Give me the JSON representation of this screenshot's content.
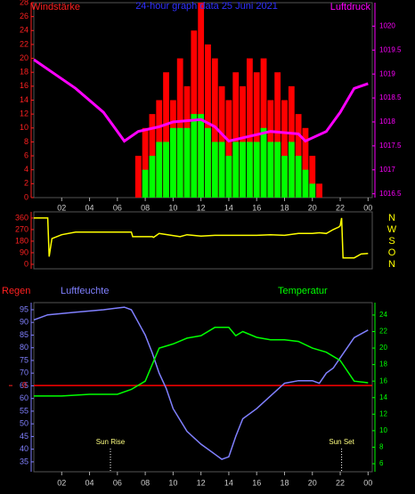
{
  "chart_data": [
    {
      "type": "bar",
      "title": "24-hour graph data  25 Juni 2021",
      "left_label": "Windstärke",
      "right_label": "Luftdruck",
      "left_color": "#ff2020",
      "right_color": "#ff00ff",
      "xlim": [
        0,
        24.3
      ],
      "xticks": [
        {
          "value": 2,
          "label": "02"
        },
        {
          "value": 4,
          "label": "04"
        },
        {
          "value": 6,
          "label": "06"
        },
        {
          "value": 8,
          "label": "08"
        },
        10,
        12,
        14,
        16,
        18,
        20,
        22,
        {
          "value": 24,
          "label": "00"
        }
      ],
      "ylim": [
        0,
        28
      ],
      "yticks": [
        0,
        2,
        4,
        6,
        8,
        10,
        12,
        14,
        16,
        18,
        20,
        22,
        24,
        26,
        28
      ],
      "y2lim": [
        1016.42,
        1020.49
      ],
      "y2ticks": [
        1016.5,
        1017,
        1017.5,
        1018,
        1018.5,
        1019,
        1019.5,
        1020
      ],
      "series": [
        {
          "type": "bar",
          "color": "#ff0000",
          "x": [
            7.5,
            8,
            8.5,
            9,
            9.5,
            10,
            10.5,
            11,
            11.5,
            12,
            12.5,
            13,
            13.5,
            14,
            14.5,
            15,
            15.5,
            16,
            16.5,
            17,
            17.5,
            18,
            18.5,
            19,
            19.5,
            20,
            20.5
          ],
          "values": [
            6,
            10,
            12,
            14,
            18,
            14,
            20,
            16,
            24,
            28,
            22,
            20,
            16,
            14,
            18,
            16,
            20,
            18,
            20,
            14,
            18,
            14,
            16,
            12,
            10,
            6,
            2
          ]
        },
        {
          "type": "bar",
          "color": "#00ff00",
          "x": [
            8,
            8.5,
            9,
            9.5,
            10,
            10.5,
            11,
            11.5,
            12,
            12.5,
            13,
            13.5,
            14,
            14.5,
            15,
            15.5,
            16,
            16.5,
            17,
            17.5,
            18,
            18.5,
            19,
            19.5,
            20
          ],
          "values": [
            4,
            6,
            8,
            8,
            10,
            10,
            10,
            12,
            12,
            10,
            8,
            8,
            6,
            8,
            8,
            8,
            8,
            10,
            8,
            8,
            6,
            8,
            6,
            4,
            2
          ]
        },
        {
          "type": "line",
          "axis": "y2",
          "color": "#ff00ff",
          "x": [
            0,
            0.5,
            1.5,
            3,
            5,
            6.5,
            7.5,
            9,
            10,
            12,
            13,
            14,
            15.5,
            17,
            19,
            19.5,
            21,
            22,
            23,
            24
          ],
          "values": [
            1019.3,
            1019.2,
            1019,
            1018.7,
            1018.2,
            1017.6,
            1017.8,
            1017.9,
            1018,
            1018.05,
            1017.9,
            1017.6,
            1017.7,
            1017.8,
            1017.75,
            1017.6,
            1017.8,
            1018.2,
            1018.7,
            1018.8
          ]
        }
      ]
    },
    {
      "type": "line",
      "left_color": "#ff2020",
      "right_color": "#ffff00",
      "xlim": [
        0,
        24.3
      ],
      "ylim": [
        -35,
        408
      ],
      "yticks": [
        0,
        90,
        180,
        270,
        360
      ],
      "right_labels": [
        "N",
        "O",
        "S",
        "W",
        "N"
      ],
      "series": [
        {
          "type": "line",
          "color": "#ffff00",
          "x": [
            0,
            1,
            1.1,
            1.3,
            2,
            3,
            5,
            7,
            7.1,
            8.5,
            8.6,
            9,
            10.5,
            11,
            12,
            13,
            15,
            16,
            17,
            18,
            19,
            20,
            20.5,
            21,
            21.5,
            21.9,
            22,
            22.1,
            22.2,
            23,
            23.5,
            24
          ],
          "values": [
            360,
            360,
            60,
            200,
            230,
            250,
            250,
            250,
            215,
            215,
            210,
            240,
            215,
            230,
            220,
            225,
            225,
            225,
            230,
            225,
            240,
            240,
            245,
            240,
            270,
            290,
            300,
            360,
            50,
            50,
            80,
            85
          ]
        }
      ]
    },
    {
      "type": "line",
      "rain_label": "Regen",
      "left_label": "Luftfeuchte",
      "right_label": "Temperatur",
      "rain_color": "#ff2020",
      "left_color": "#8080ff",
      "right_color": "#00ff00",
      "xlim": [
        0,
        24.3
      ],
      "xticks": [
        {
          "value": 2,
          "label": "02"
        },
        {
          "value": 4,
          "label": "04"
        },
        {
          "value": 6,
          "label": "06"
        },
        {
          "value": 8,
          "label": "08"
        },
        10,
        12,
        14,
        16,
        18,
        20,
        22,
        {
          "value": 24,
          "label": "00"
        }
      ],
      "ylim": [
        31.1,
        97.8
      ],
      "yticks": [
        35,
        40,
        45,
        50,
        55,
        60,
        65,
        70,
        75,
        80,
        85,
        90,
        95
      ],
      "y2lim": [
        5.03,
        25.5
      ],
      "y2ticks": [
        6,
        8,
        10,
        12,
        14,
        16,
        18,
        20,
        22,
        24
      ],
      "rain_lim": [
        -10.4,
        10
      ],
      "rain_ticks": [
        0
      ],
      "annotations": [
        {
          "text": "Sun Rise",
          "x": 5.5
        },
        {
          "text": "Sun Set",
          "x": 22.1
        }
      ],
      "series": [
        {
          "type": "line",
          "axis": "rain",
          "color": "#ff0000",
          "x": [
            0,
            24.3
          ],
          "values": [
            0,
            0
          ]
        },
        {
          "type": "line",
          "color": "#8080ff",
          "x": [
            0,
            1,
            3,
            5,
            6.5,
            7,
            7.5,
            8,
            8.5,
            9,
            9.5,
            10,
            11,
            12,
            13,
            13.5,
            14,
            14.5,
            15,
            16,
            17,
            18,
            19,
            20,
            20.5,
            21,
            21.5,
            22,
            23,
            24
          ],
          "values": [
            91,
            93,
            94,
            95,
            96,
            95,
            90,
            85,
            78,
            70,
            64,
            56,
            47,
            42,
            38,
            36,
            37,
            45,
            52,
            56,
            61,
            66,
            67,
            67,
            66,
            70,
            72,
            76,
            84,
            87
          ]
        },
        {
          "type": "line",
          "axis": "y2",
          "color": "#00ff00",
          "x": [
            0,
            2,
            4,
            6,
            7,
            8,
            8.5,
            9,
            10,
            11,
            12,
            13,
            13.5,
            14,
            14.5,
            15,
            16,
            17,
            18,
            19,
            20,
            21,
            22,
            23,
            24
          ],
          "values": [
            14.2,
            14.2,
            14.4,
            14.4,
            15,
            16,
            18,
            20,
            20.5,
            21.2,
            21.5,
            22.5,
            22.5,
            22.5,
            21.5,
            22,
            21.3,
            21,
            21,
            20.8,
            20,
            19.5,
            18.5,
            16,
            15.8
          ]
        }
      ]
    }
  ]
}
